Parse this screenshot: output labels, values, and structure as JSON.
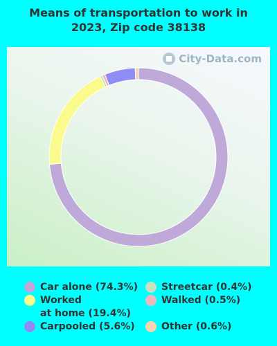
{
  "title_lines": [
    "Means of transportation to work in",
    "2023, Zip code 38138"
  ],
  "watermark": "City-Data.com",
  "chart_data": {
    "type": "pie",
    "title": "Means of transportation to work in 2023, Zip code 38138",
    "slices": [
      {
        "name": "Car alone",
        "value": 74.3,
        "color": "#bfa9d9"
      },
      {
        "name": "Worked at home",
        "value": 19.4,
        "color": "#fbfb8d"
      },
      {
        "name": "Streetcar",
        "value": 0.4,
        "color": "#c8e0bd"
      },
      {
        "name": "Walked",
        "value": 0.5,
        "color": "#f0b6c0"
      },
      {
        "name": "Carpooled",
        "value": 5.6,
        "color": "#8f8df5"
      },
      {
        "name": "Other",
        "value": 0.6,
        "color": "#f7d4ae"
      }
    ]
  },
  "legend": [
    {
      "lines": [
        "Car alone (74.3%)"
      ],
      "color": "#bfa9d9"
    },
    {
      "lines": [
        "Worked",
        "at home (19.4%)"
      ],
      "color": "#fbfb8d"
    },
    {
      "lines": [
        "Carpooled (5.6%)"
      ],
      "color": "#8f8df5"
    },
    {
      "lines": [
        "Streetcar (0.4%)"
      ],
      "color": "#c8e0bd"
    },
    {
      "lines": [
        "Walked (0.5%)"
      ],
      "color": "#f0b6c0"
    },
    {
      "lines": [
        "Other (0.6%)"
      ],
      "color": "#f7d4ae"
    }
  ]
}
